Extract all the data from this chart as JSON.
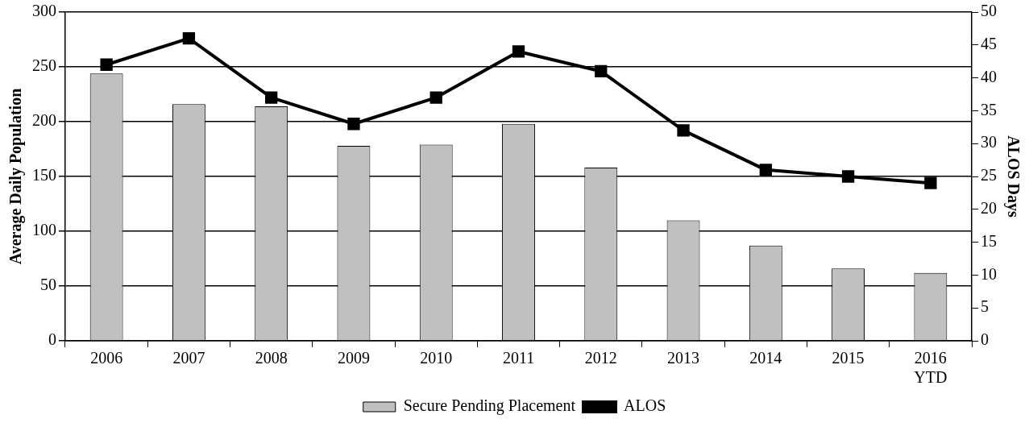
{
  "chart_data": {
    "type": "bar",
    "categories": [
      "2006",
      "2007",
      "2008",
      "2009",
      "2010",
      "2011",
      "2012",
      "2013",
      "2014",
      "2015",
      "2016\nYTD"
    ],
    "series": [
      {
        "name": "Secure Pending Placement",
        "color": "#c0c0c0",
        "values": [
          244,
          216,
          214,
          178,
          179,
          198,
          158,
          110,
          87,
          66,
          62
        ]
      },
      {
        "name": "ALOS",
        "type": "line",
        "axis": "y2",
        "color": "#000000",
        "values": [
          42,
          46,
          37,
          33,
          37,
          44,
          41,
          32,
          26,
          25,
          24
        ]
      }
    ],
    "ylabel": "Average Daily Population",
    "y2label": "ALOS Days",
    "ylim": [
      0,
      300
    ],
    "yticks": [
      0,
      50,
      100,
      150,
      200,
      250,
      300
    ],
    "y2lim": [
      0,
      50
    ],
    "y2ticks": [
      0,
      5,
      10,
      15,
      20,
      25,
      30,
      35,
      40,
      45,
      50
    ],
    "grid": "y",
    "legend": "bottom",
    "marker": "square",
    "line_style": "solid"
  }
}
